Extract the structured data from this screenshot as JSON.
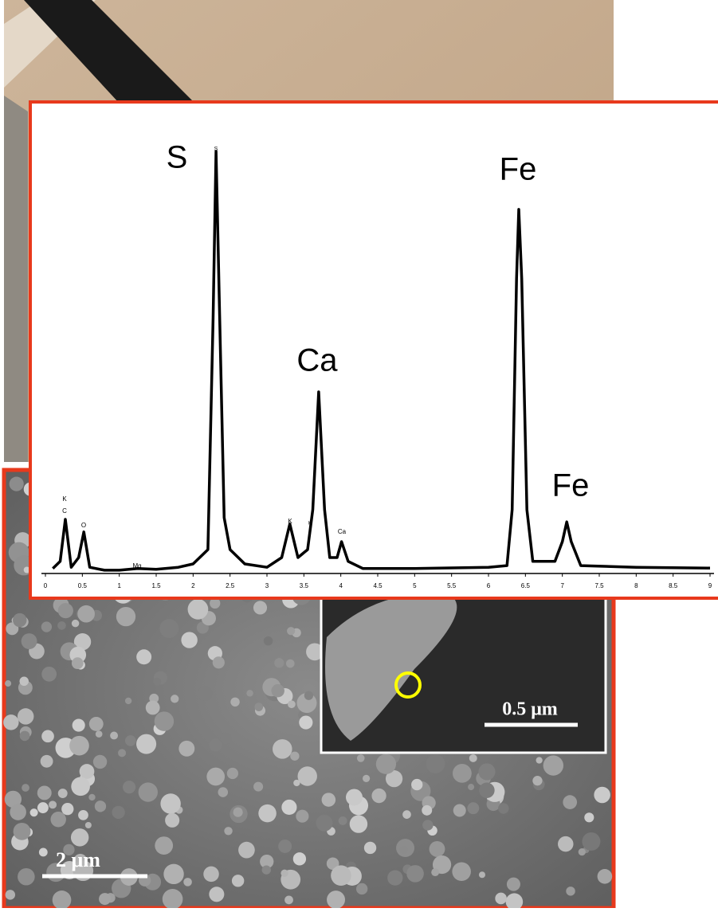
{
  "chart_data": {
    "type": "line",
    "color": "#000000",
    "annotations": [
      "S",
      "Ca",
      "Fe",
      "Fe",
      "K",
      "C",
      "O",
      "Mg",
      "S",
      "K",
      "K",
      "Ca"
    ],
    "x": [
      0.1,
      0.2,
      0.27,
      0.35,
      0.45,
      0.52,
      0.6,
      0.8,
      1.0,
      1.25,
      1.5,
      1.8,
      2.0,
      2.2,
      2.27,
      2.31,
      2.36,
      2.42,
      2.5,
      2.7,
      3.0,
      3.2,
      3.31,
      3.42,
      3.55,
      3.62,
      3.7,
      3.78,
      3.85,
      3.95,
      4.01,
      4.1,
      4.3,
      5.0,
      6.0,
      6.25,
      6.32,
      6.38,
      6.41,
      6.45,
      6.52,
      6.6,
      6.9,
      7.0,
      7.06,
      7.12,
      7.25,
      8.0,
      9.0
    ],
    "values": [
      0.8,
      2.5,
      12.5,
      1.1,
      3.4,
      9.5,
      1.1,
      0.4,
      0.4,
      0.8,
      0.6,
      1.1,
      1.9,
      5.3,
      60.2,
      100,
      60.2,
      12.9,
      5.3,
      1.9,
      1.1,
      3.4,
      11.4,
      3.4,
      5.3,
      14.8,
      42.8,
      14.8,
      3.4,
      3.4,
      7.2,
      2.5,
      0.8,
      0.8,
      1.1,
      1.5,
      14.8,
      69.7,
      86.2,
      69.7,
      14.8,
      2.5,
      2.5,
      7.2,
      11.9,
      7.2,
      1.5,
      1.1,
      0.9
    ],
    "xlim": [
      0,
      9
    ],
    "xticks": [
      0,
      0.5,
      1,
      1.5,
      2,
      2.5,
      3,
      3.5,
      4,
      4.5,
      5,
      5.5,
      6,
      6.5,
      7,
      7.5,
      8,
      8.5,
      9
    ],
    "ylim": [
      0,
      100
    ]
  },
  "images": {
    "sem_scale": "2 μm",
    "inset_scale": "0.5 μm"
  }
}
